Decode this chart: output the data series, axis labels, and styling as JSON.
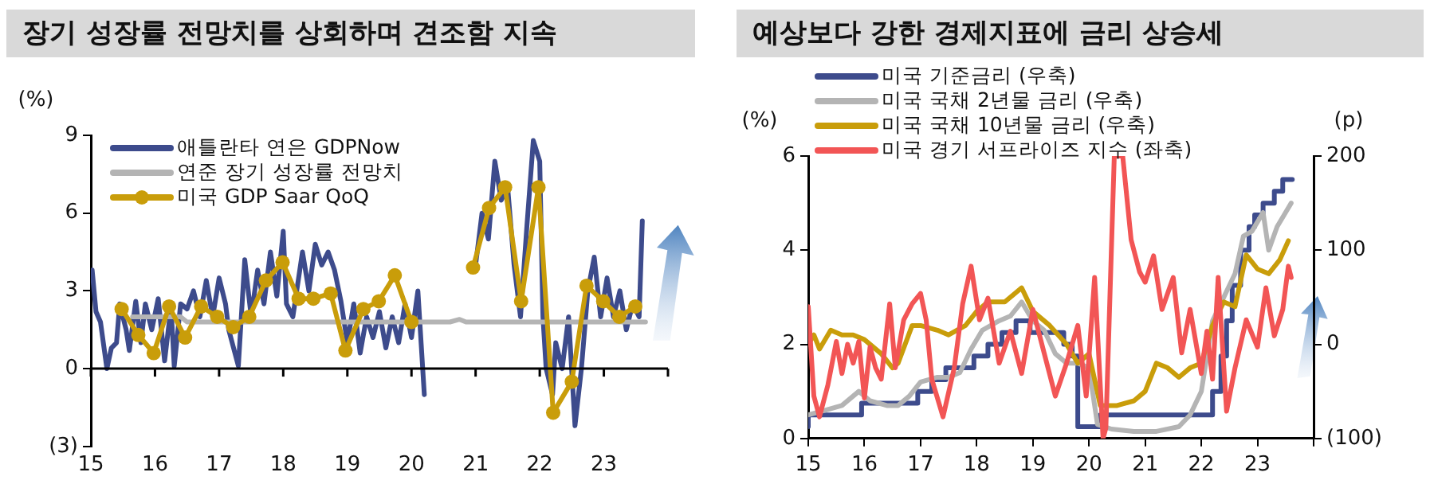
{
  "chart_data": [
    {
      "type": "line",
      "title": "장기 성장률 전망치를 상회하며 견조함 지속",
      "ylabel": "(%)",
      "xlim": [
        15,
        24
      ],
      "xticks": [
        15,
        16,
        17,
        18,
        19,
        20,
        21,
        22,
        23,
        {
          "value": 24,
          "label": null
        }
      ],
      "ylim": [
        -3,
        9
      ],
      "yticks": [
        {
          "value": -3,
          "label": "(3)"
        },
        0,
        3,
        6,
        9
      ],
      "legend": "top left",
      "series": [
        {
          "name": "애틀란타 연은 GDPNow",
          "color": "#3d4b8c",
          "x": [
            15.02,
            15.08,
            15.15,
            15.25,
            15.32,
            15.4,
            15.45,
            15.55,
            15.6,
            15.7,
            15.78,
            15.85,
            15.95,
            16.05,
            16.15,
            16.25,
            16.3,
            16.4,
            16.5,
            16.6,
            16.7,
            16.8,
            16.9,
            17.0,
            17.1,
            17.15,
            17.3,
            17.4,
            17.5,
            17.6,
            17.7,
            17.8,
            17.9,
            18.0,
            18.05,
            18.15,
            18.3,
            18.4,
            18.5,
            18.6,
            18.7,
            18.8,
            18.9,
            19.0,
            19.1,
            19.2,
            19.3,
            19.4,
            19.5,
            19.6,
            19.7,
            19.8,
            19.9,
            20.0,
            20.1,
            20.2,
            20.4,
            20.9,
            21.0,
            21.1,
            21.2,
            21.3,
            21.4,
            21.5,
            21.6,
            21.7,
            21.8,
            21.9,
            22.0,
            22.05,
            22.1,
            22.2,
            22.25,
            22.35,
            22.45,
            22.55,
            22.65,
            22.75,
            22.85,
            22.95,
            23.05,
            23.15,
            23.25,
            23.35,
            23.45,
            23.55,
            23.6
          ],
          "values": [
            3.8,
            2.2,
            1.8,
            0.0,
            0.8,
            1.0,
            2.5,
            1.5,
            0.7,
            2.6,
            1.0,
            2.5,
            1.5,
            2.7,
            0.3,
            2.4,
            0.1,
            2.5,
            2.3,
            3.0,
            2.0,
            3.4,
            2.0,
            3.5,
            2.5,
            1.5,
            0.1,
            4.2,
            2.0,
            3.8,
            2.5,
            4.5,
            2.8,
            5.3,
            2.5,
            2.0,
            4.5,
            3.0,
            4.8,
            4.0,
            4.5,
            3.8,
            2.6,
            1.0,
            2.5,
            0.6,
            2.0,
            1.2,
            2.2,
            0.8,
            2.0,
            1.0,
            2.5,
            1.2,
            3.0,
            -1.0,
            null,
            null,
            4.0,
            6.0,
            5.0,
            8.0,
            6.5,
            7.0,
            4.0,
            2.0,
            5.5,
            8.8,
            8.0,
            2.0,
            0.0,
            -1.0,
            1.0,
            0.0,
            2.0,
            -2.2,
            0.0,
            3.0,
            4.3,
            2.0,
            3.5,
            2.0,
            3.0,
            1.5,
            2.5,
            2.0,
            5.7
          ]
        },
        {
          "name": "연준 장기 성장률 전망치",
          "color": "#b4b4b4",
          "x": [
            15.65,
            16.4,
            16.5,
            20.6,
            20.75,
            20.85,
            23.65
          ],
          "values": [
            2.0,
            2.0,
            1.8,
            1.8,
            1.9,
            1.8,
            1.8
          ]
        },
        {
          "name": "미국 GDP Saar QoQ",
          "color": "#c99d0a",
          "marker": "circle",
          "x": [
            15.48,
            15.74,
            15.98,
            16.22,
            16.47,
            16.72,
            16.97,
            17.22,
            17.47,
            17.73,
            17.99,
            18.24,
            18.47,
            18.74,
            18.97,
            19.25,
            19.49,
            19.74,
            20.0,
            20.25,
            20.5,
            20.75,
            20.96,
            21.21,
            21.46,
            21.71,
            21.98,
            22.21,
            22.5,
            22.73,
            22.99,
            23.24,
            23.49
          ],
          "values": [
            2.3,
            1.3,
            0.6,
            2.4,
            1.2,
            2.4,
            2.0,
            1.6,
            2.0,
            3.4,
            4.1,
            2.7,
            2.7,
            2.9,
            0.7,
            2.3,
            2.6,
            3.6,
            1.8,
            null,
            null,
            null,
            3.9,
            6.2,
            7.0,
            2.6,
            7.0,
            -1.7,
            -0.5,
            3.2,
            2.6,
            2.0,
            2.4
          ]
        }
      ]
    },
    {
      "type": "line",
      "title": "예상보다 강한 경제지표에 금리 상승세",
      "ylabel": "(%)",
      "y2label": "(p)",
      "xlim": [
        15,
        24
      ],
      "xticks": [
        15,
        16,
        17,
        18,
        19,
        20,
        21,
        22,
        23,
        {
          "value": 24,
          "label": null
        }
      ],
      "ylim": [
        0,
        6
      ],
      "yticks": [
        0,
        2,
        4,
        6
      ],
      "y2lim": [
        -100,
        200
      ],
      "y2ticks": [
        {
          "value": -100,
          "label": "(100)"
        },
        0,
        100,
        200
      ],
      "legend": "top",
      "series": [
        {
          "name": "미국 기준금리 (우축)",
          "color": "#3d4b8c",
          "type": "step",
          "x": [
            15.0,
            15.95,
            16.95,
            17.2,
            17.45,
            17.95,
            18.2,
            18.45,
            18.7,
            18.95,
            19.55,
            19.7,
            19.8,
            20.2,
            22.2,
            22.35,
            22.45,
            22.55,
            22.7,
            22.85,
            22.95,
            23.1,
            23.3,
            23.45,
            23.55,
            23.62
          ],
          "values": [
            0.25,
            0.5,
            0.75,
            1.0,
            1.25,
            1.5,
            1.75,
            2.0,
            2.25,
            2.5,
            2.25,
            2.0,
            1.75,
            0.25,
            0.5,
            1.0,
            1.75,
            2.5,
            3.25,
            4.0,
            4.5,
            4.75,
            5.0,
            5.25,
            5.5,
            5.5
          ]
        },
        {
          "name": "미국 국채 2년물 금리 (우축)",
          "color": "#b4b4b4",
          "x": [
            15.0,
            15.3,
            15.6,
            15.9,
            16.1,
            16.4,
            16.6,
            16.8,
            17.0,
            17.3,
            17.5,
            17.7,
            17.9,
            18.1,
            18.4,
            18.6,
            18.8,
            19.0,
            19.2,
            19.4,
            19.6,
            19.8,
            20.0,
            20.15,
            20.4,
            20.8,
            21.2,
            21.6,
            21.8,
            22.0,
            22.2,
            22.4,
            22.6,
            22.75,
            22.9,
            23.1,
            23.2,
            23.35,
            23.5,
            23.6
          ],
          "values": [
            0.5,
            0.6,
            0.7,
            1.0,
            0.8,
            0.7,
            0.7,
            0.9,
            1.2,
            1.3,
            1.3,
            1.4,
            1.9,
            2.3,
            2.5,
            2.6,
            2.9,
            2.5,
            2.3,
            1.8,
            1.6,
            1.6,
            1.5,
            0.3,
            0.2,
            0.15,
            0.15,
            0.25,
            0.5,
            1.0,
            2.5,
            3.0,
            3.5,
            4.3,
            4.4,
            4.8,
            4.0,
            4.5,
            4.8,
            5.0
          ]
        },
        {
          "name": "미국 국채 10년물 금리 (우축)",
          "color": "#c99d0a",
          "x": [
            15.0,
            15.1,
            15.2,
            15.4,
            15.6,
            15.8,
            16.0,
            16.3,
            16.5,
            16.6,
            16.85,
            17.0,
            17.3,
            17.5,
            17.8,
            18.0,
            18.2,
            18.5,
            18.8,
            19.0,
            19.3,
            19.6,
            19.8,
            20.0,
            20.2,
            20.5,
            20.8,
            21.0,
            21.2,
            21.4,
            21.6,
            21.8,
            22.0,
            22.2,
            22.4,
            22.6,
            22.8,
            23.0,
            23.2,
            23.4,
            23.55
          ],
          "values": [
            2.0,
            2.2,
            1.9,
            2.3,
            2.2,
            2.2,
            2.1,
            1.8,
            1.5,
            1.6,
            2.4,
            2.4,
            2.3,
            2.2,
            2.4,
            2.7,
            2.9,
            2.9,
            3.2,
            2.7,
            2.4,
            2.0,
            1.6,
            1.8,
            0.7,
            0.7,
            0.8,
            1.0,
            1.6,
            1.5,
            1.3,
            1.5,
            1.6,
            2.4,
            2.9,
            2.8,
            3.9,
            3.6,
            3.5,
            3.8,
            4.2
          ]
        },
        {
          "name": "미국 경기 서프라이즈 지수 (좌축)",
          "color": "#f25555",
          "axis": "y2",
          "x": [
            15.0,
            15.1,
            15.2,
            15.35,
            15.5,
            15.6,
            15.7,
            15.8,
            15.9,
            16.0,
            16.1,
            16.2,
            16.3,
            16.45,
            16.55,
            16.7,
            16.85,
            17.0,
            17.1,
            17.2,
            17.4,
            17.6,
            17.75,
            17.9,
            18.05,
            18.2,
            18.4,
            18.6,
            18.8,
            19.0,
            19.2,
            19.4,
            19.6,
            19.8,
            19.95,
            20.1,
            20.25,
            20.3,
            20.45,
            20.6,
            20.75,
            20.9,
            21.0,
            21.15,
            21.3,
            21.5,
            21.65,
            21.8,
            22.0,
            22.1,
            22.2,
            22.3,
            22.45,
            22.6,
            22.8,
            23.0,
            23.15,
            23.3,
            23.45,
            23.55,
            23.6
          ],
          "values": [
            40,
            -55,
            -77,
            -43,
            3,
            -31,
            0,
            -20,
            3,
            -57,
            -3,
            -25,
            -37,
            43,
            -25,
            26,
            43,
            54,
            26,
            -37,
            -77,
            -25,
            43,
            83,
            26,
            49,
            -20,
            14,
            -31,
            37,
            -9,
            -55,
            -20,
            20,
            -55,
            71,
            -100,
            -89,
            200,
            200,
            111,
            77,
            66,
            94,
            37,
            71,
            -9,
            37,
            -31,
            14,
            -37,
            71,
            -71,
            -25,
            26,
            -3,
            60,
            9,
            37,
            83,
            71
          ]
        }
      ]
    }
  ]
}
